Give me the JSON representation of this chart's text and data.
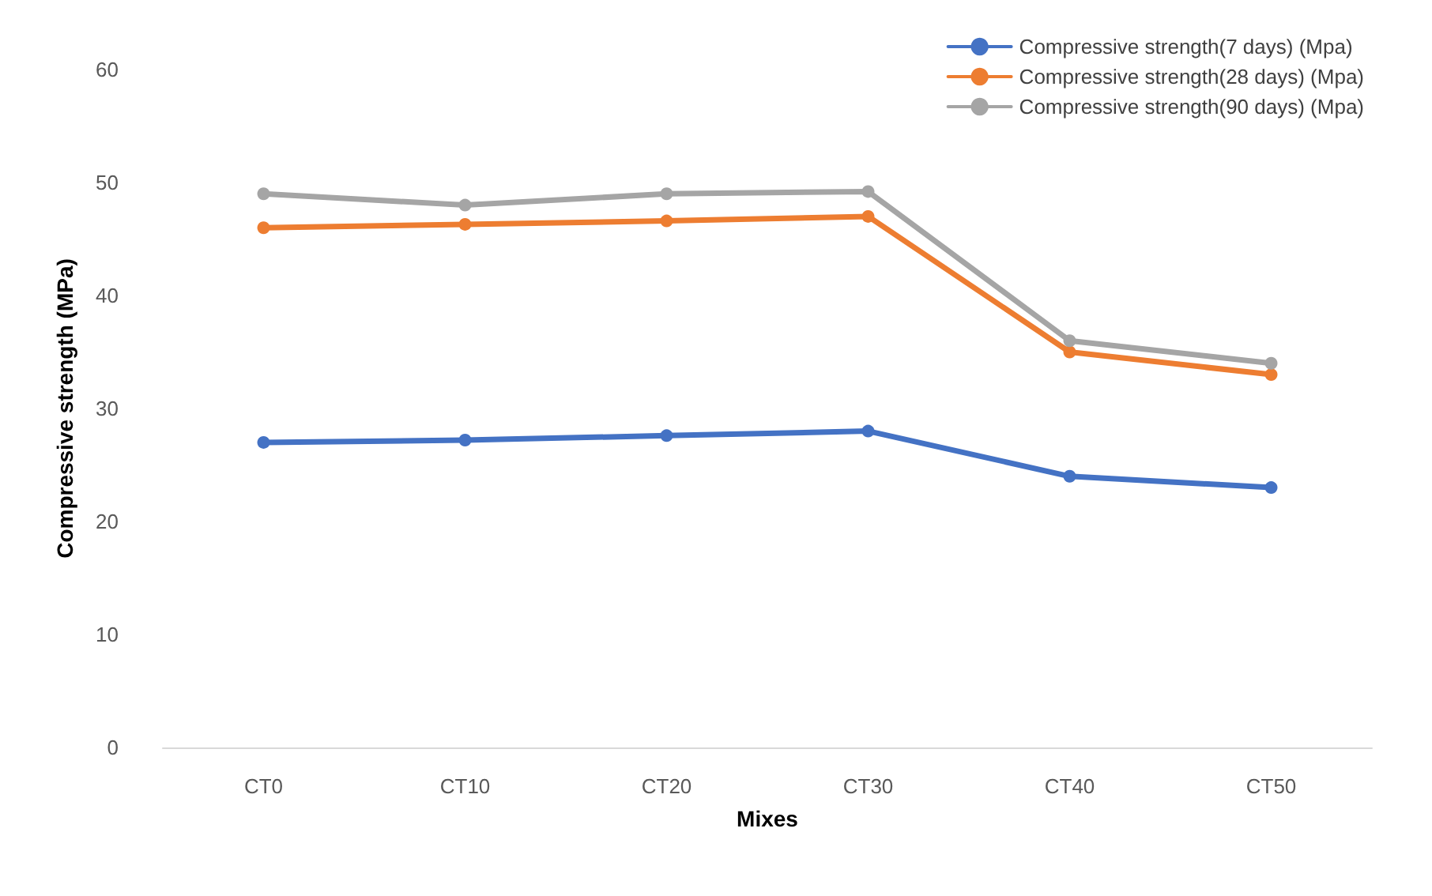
{
  "chart_data": {
    "type": "line",
    "xlabel": "Mixes",
    "ylabel": "Compressive strength (MPa)",
    "categories": [
      "CT0",
      "CT10",
      "CT20",
      "CT30",
      "CT40",
      "CT50"
    ],
    "series": [
      {
        "name": "Compressive strength(7 days) (Mpa)",
        "color": "#4472c4",
        "values": [
          27,
          27.2,
          27.6,
          28,
          24,
          23
        ]
      },
      {
        "name": "Compressive strength(28 days) (Mpa)",
        "color": "#ed7d31",
        "values": [
          46,
          46.3,
          46.6,
          47,
          35,
          33
        ]
      },
      {
        "name": "Compressive strength(90 days) (Mpa)",
        "color": "#a5a5a5",
        "values": [
          49,
          48,
          49,
          49.2,
          36,
          34
        ]
      }
    ],
    "ylim": [
      0,
      60
    ],
    "yticks": [
      0,
      10,
      20,
      30,
      40,
      50,
      60
    ],
    "grid": false,
    "legend": "top right",
    "marker": "circle",
    "line_style": "solid"
  }
}
